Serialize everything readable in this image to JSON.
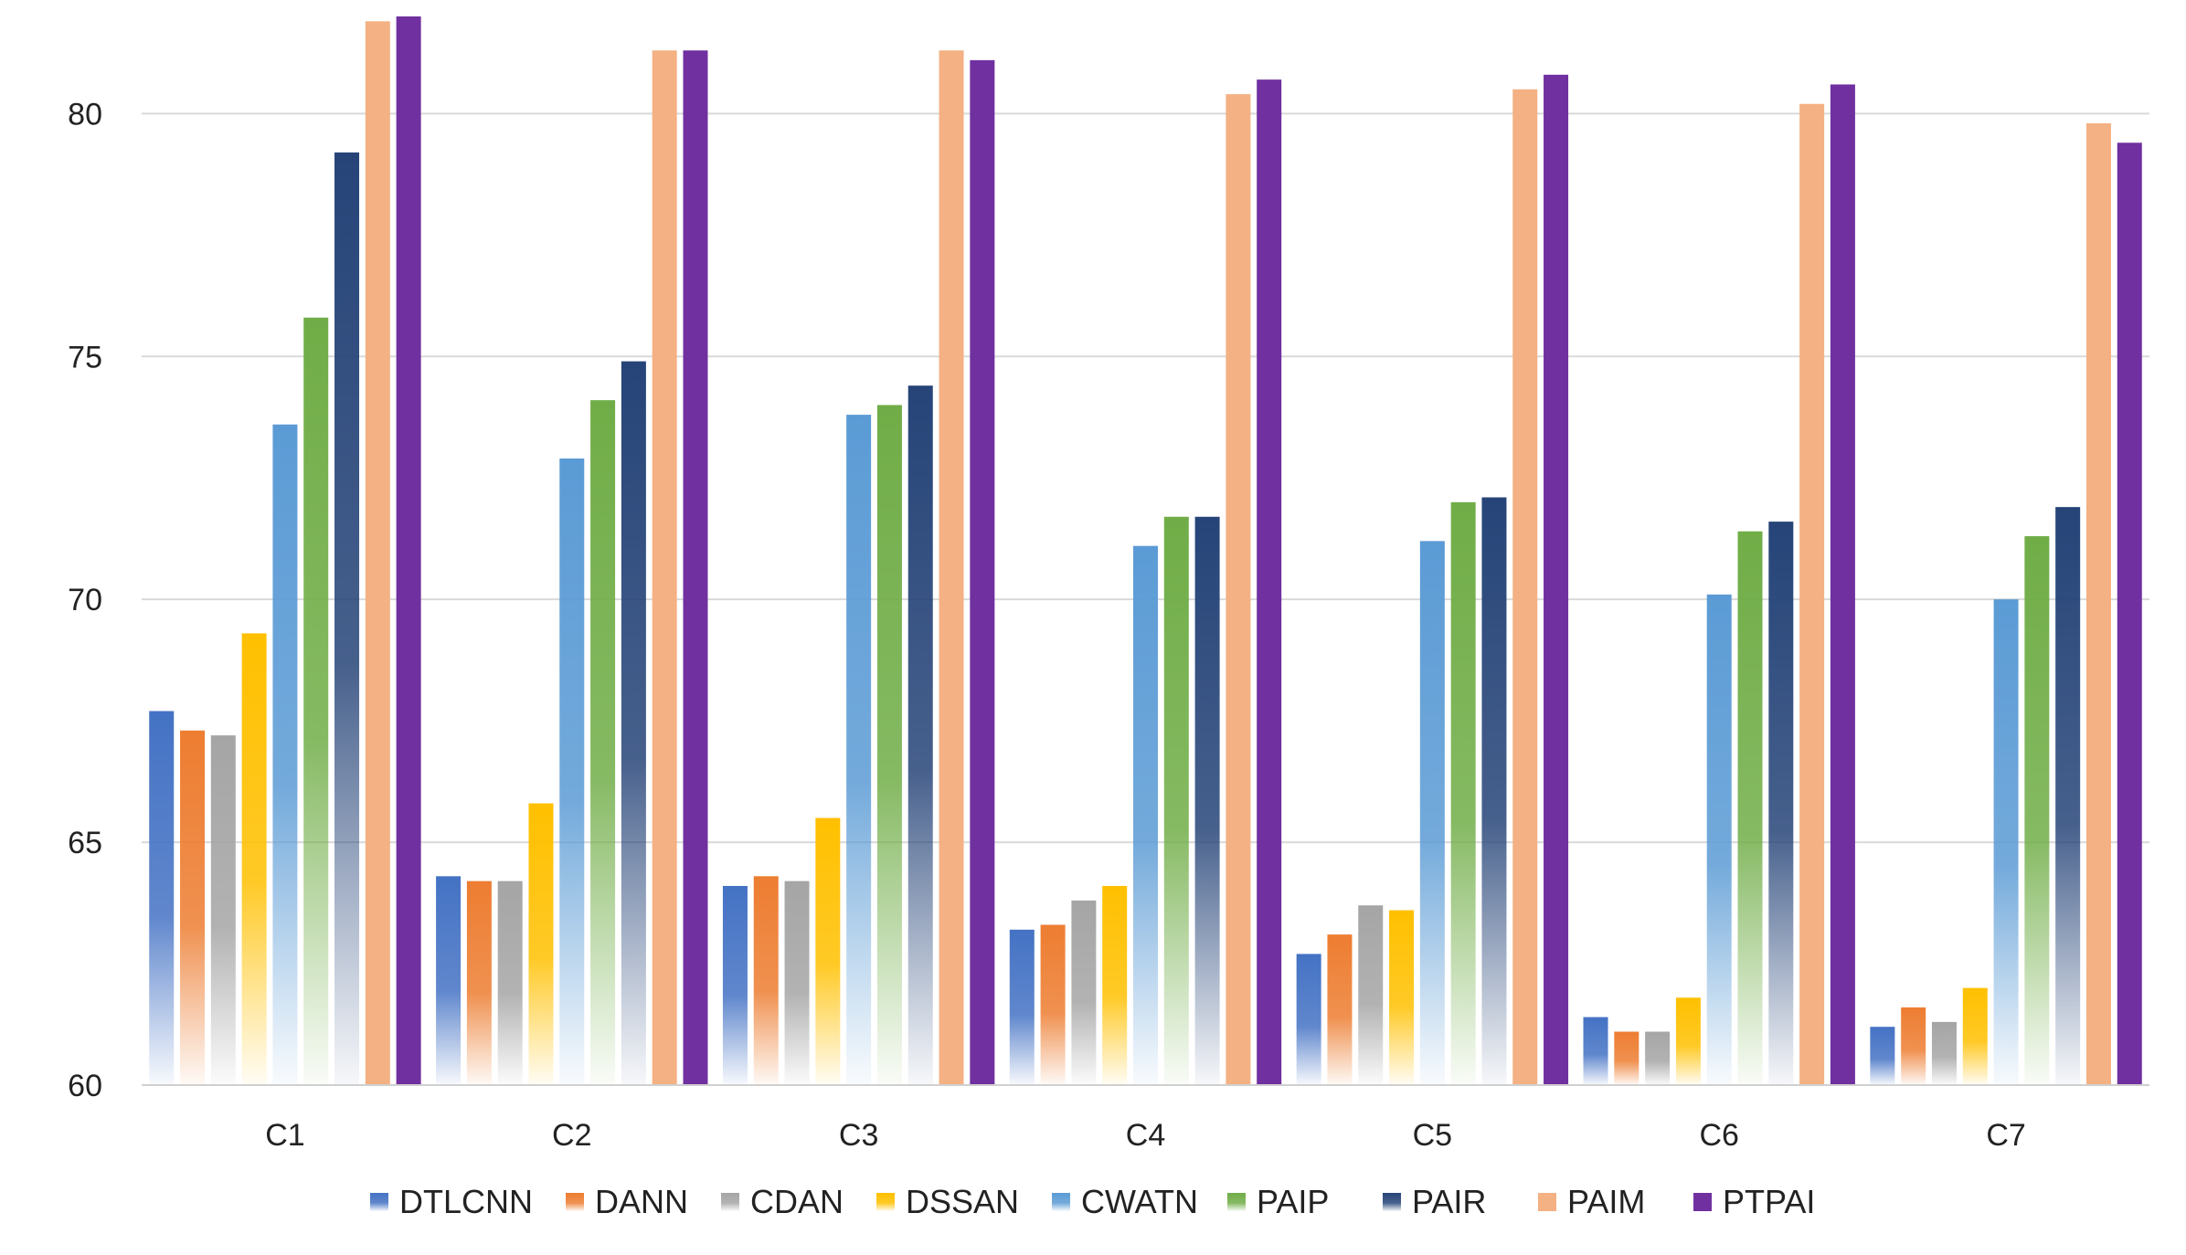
{
  "chart_data": {
    "type": "bar",
    "title": "",
    "xlabel": "",
    "ylabel": "",
    "ylim": [
      60,
      82
    ],
    "yticks": [
      60,
      65,
      70,
      75,
      80
    ],
    "grid": true,
    "legend_position": "bottom",
    "categories": [
      "C1",
      "C2",
      "C3",
      "C4",
      "C5",
      "C6",
      "C7"
    ],
    "series": [
      {
        "name": "DTLCNN",
        "color": "#4472C4",
        "gradient": true,
        "values": [
          67.7,
          64.3,
          64.1,
          63.2,
          62.7,
          61.4,
          61.2
        ]
      },
      {
        "name": "DANN",
        "color": "#ED7D31",
        "gradient": true,
        "values": [
          67.3,
          64.2,
          64.3,
          63.3,
          63.1,
          61.1,
          61.6
        ]
      },
      {
        "name": "CDAN",
        "color": "#A5A5A5",
        "gradient": true,
        "values": [
          67.2,
          64.2,
          64.2,
          63.8,
          63.7,
          61.1,
          61.3
        ]
      },
      {
        "name": "DSSAN",
        "color": "#FFC000",
        "gradient": true,
        "values": [
          69.3,
          65.8,
          65.5,
          64.1,
          63.6,
          61.8,
          62.0
        ]
      },
      {
        "name": "CWATN",
        "color": "#5B9BD5",
        "gradient": true,
        "values": [
          73.6,
          72.9,
          73.8,
          71.1,
          71.2,
          70.1,
          70.0
        ]
      },
      {
        "name": "PAIP",
        "color": "#70AD47",
        "gradient": true,
        "values": [
          75.8,
          74.1,
          74.0,
          71.7,
          72.0,
          71.4,
          71.3
        ]
      },
      {
        "name": "PAIR",
        "color": "#264478",
        "gradient": true,
        "values": [
          79.2,
          74.9,
          74.4,
          71.7,
          72.1,
          71.6,
          71.9
        ]
      },
      {
        "name": "PAIM",
        "color": "#F4B183",
        "gradient": false,
        "values": [
          81.9,
          81.3,
          81.3,
          80.4,
          80.5,
          80.2,
          79.8
        ]
      },
      {
        "name": "PTPAI",
        "color": "#7030A0",
        "gradient": false,
        "values": [
          82.0,
          81.3,
          81.1,
          80.7,
          80.8,
          80.6,
          79.4
        ]
      }
    ]
  }
}
